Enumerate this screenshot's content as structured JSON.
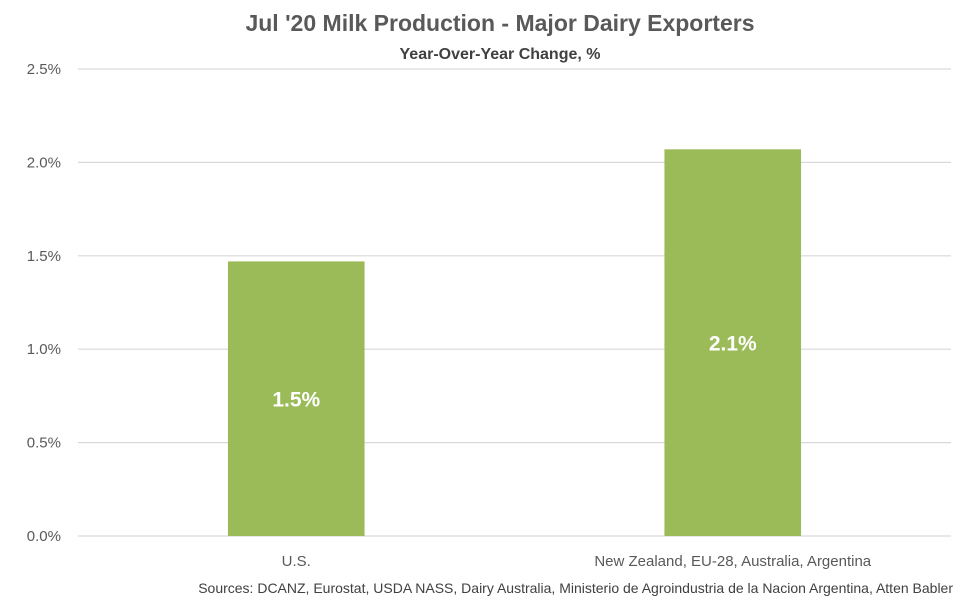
{
  "chart_data": {
    "type": "bar",
    "title": "Jul '20 Milk Production - Major Dairy Exporters",
    "subtitle": "Year-Over-Year Change, %",
    "categories": [
      "U.S.",
      "New Zealand, EU-28, Australia, Argentina"
    ],
    "values": [
      1.47,
      2.07
    ],
    "data_labels": [
      "1.5%",
      "2.1%"
    ],
    "ylim": [
      0,
      2.5
    ],
    "yticks": [
      0,
      0.5,
      1.0,
      1.5,
      2.0,
      2.5
    ],
    "ytick_labels": [
      "0.0%",
      "0.5%",
      "1.0%",
      "1.5%",
      "2.0%",
      "2.5%"
    ],
    "xlabel": "",
    "ylabel": "",
    "grid": true,
    "legend": "none",
    "bar_color": "#9BBB59",
    "source": "Sources: DCANZ, Eurostat, USDA NASS, Dairy Australia, Ministerio de Agroindustria de la Nacion Argentina, Atten Babler"
  }
}
